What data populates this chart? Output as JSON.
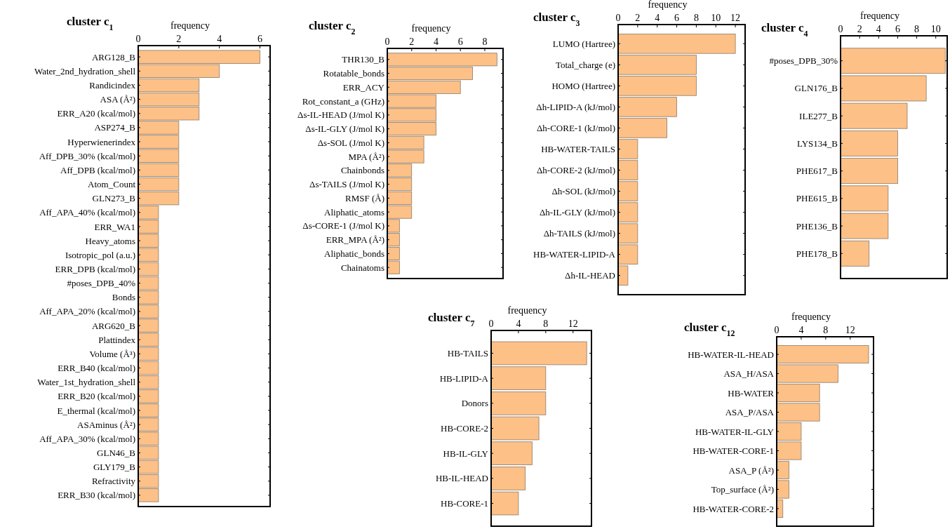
{
  "chart_data": [
    {
      "type": "bar",
      "orientation": "horizontal",
      "title": "cluster c$_{1}$",
      "xlabel": "frequency",
      "color": "#fdc086",
      "xlim": [
        0,
        6.5
      ],
      "xticks": [
        0,
        2,
        4,
        6
      ],
      "categories": [
        "ARG128_B",
        "Water_2nd_hydration_shell",
        "Randicindex",
        "ASA (Å²)",
        "ERR_A20 (kcal/mol)",
        "ASP274_B",
        "Hyperwienerindex",
        "Aff_DPB_30% (kcal/mol)",
        "Aff_DPB (kcal/mol)",
        "Atom_Count",
        "GLN273_B",
        "Aff_APA_40% (kcal/mol)",
        "ERR_WA1",
        "Heavy_atoms",
        "Isotropic_pol (a.u.)",
        "ERR_DPB (kcal/mol)",
        "#poses_DPB_40%",
        "Bonds",
        "Aff_APA_20% (kcal/mol)",
        "ARG620_B",
        "Plattindex",
        "Volume (Å³)",
        "ERR_B40 (kcal/mol)",
        "Water_1st_hydration_shell",
        "ERR_B20 (kcal/mol)",
        "E_thermal (kcal/mol)",
        "ASAminus (Å²)",
        "Aff_APA_30% (kcal/mol)",
        "GLN46_B",
        "GLY179_B",
        "Refractivity",
        "ERR_B30 (kcal/mol)"
      ],
      "values": [
        6,
        4,
        3,
        3,
        3,
        2,
        2,
        2,
        2,
        2,
        2,
        1,
        1,
        1,
        1,
        1,
        1,
        1,
        1,
        1,
        1,
        1,
        1,
        1,
        1,
        1,
        1,
        1,
        1,
        1,
        1,
        1
      ]
    },
    {
      "type": "bar",
      "orientation": "horizontal",
      "title": "cluster c$_{2}$",
      "xlabel": "frequency",
      "color": "#fdc086",
      "xlim": [
        0,
        9.5
      ],
      "xticks": [
        0,
        2,
        4,
        6,
        8
      ],
      "categories": [
        "THR130_B",
        "Rotatable_bonds",
        "ERR_ACY",
        "Rot_constant_a (GHz)",
        "Δs-IL-HEAD (J/mol K)",
        "Δs-IL-GLY (J/mol K)",
        "Δs-SOL (J/mol K)",
        "MPA (Å²)",
        "Chainbonds",
        "Δs-TAILS (J/mol K)",
        "RMSF (Å)",
        "Aliphatic_atoms",
        "Δs-CORE-1 (J/mol K)",
        "ERR_MPA (Å²)",
        "Aliphatic_bonds",
        "Chainatoms"
      ],
      "values": [
        9,
        7,
        6,
        4,
        4,
        4,
        3,
        3,
        2,
        2,
        2,
        2,
        1,
        1,
        1,
        1
      ]
    },
    {
      "type": "bar",
      "orientation": "horizontal",
      "title": "cluster c$_{3}$",
      "xlabel": "frequency",
      "color": "#fdc086",
      "xlim": [
        0,
        13
      ],
      "xticks": [
        0,
        2,
        4,
        6,
        8,
        10,
        12
      ],
      "categories": [
        "LUMO (Hartree)",
        "Total_charge (e)",
        "HOMO (Hartree)",
        "Δh-LIPID-A (kJ/mol)",
        "Δh-CORE-1 (kJ/mol)",
        "HB-WATER-TAILS",
        "Δh-CORE-2 (kJ/mol)",
        "Δh-SOL (kJ/mol)",
        "Δh-IL-GLY (kJ/mol)",
        "Δh-TAILS (kJ/mol)",
        "HB-WATER-LIPID-A",
        "Δh-IL-HEAD"
      ],
      "values": [
        12,
        8,
        8,
        6,
        5,
        2,
        2,
        2,
        2,
        2,
        2,
        1
      ]
    },
    {
      "type": "bar",
      "orientation": "horizontal",
      "title": "cluster c$_{4}$",
      "xlabel": "frequency",
      "color": "#fdc086",
      "xlim": [
        0,
        11.2
      ],
      "xticks": [
        0,
        2,
        4,
        6,
        8,
        10
      ],
      "categories": [
        "#poses_DPB_30%",
        "GLN176_B",
        "ILE277_B",
        "LYS134_B",
        "PHE617_B",
        "PHE615_B",
        "PHE136_B",
        "PHE178_B"
      ],
      "values": [
        11,
        9,
        7,
        6,
        6,
        5,
        5,
        3
      ]
    },
    {
      "type": "bar",
      "orientation": "horizontal",
      "title": "cluster c$_{7}$",
      "xlabel": "frequency",
      "color": "#fdc086",
      "xlim": [
        0,
        14.7
      ],
      "xticks": [
        0,
        4,
        8,
        12
      ],
      "categories": [
        "HB-TAILS",
        "HB-LIPID-A",
        "Donors",
        "HB-CORE-2",
        "HB-IL-GLY",
        "HB-IL-HEAD",
        "HB-CORE-1"
      ],
      "values": [
        14,
        8,
        8,
        7,
        6,
        5,
        4
      ]
    },
    {
      "type": "bar",
      "orientation": "horizontal",
      "title": "cluster c$_{12}$",
      "xlabel": "frequency",
      "color": "#fdc086",
      "xlim": [
        0,
        15.8
      ],
      "xticks": [
        0,
        4,
        8,
        12
      ],
      "categories": [
        "HB-WATER-IL-HEAD",
        "ASA_H/ASA",
        "HB-WATER",
        "ASA_P/ASA",
        "HB-WATER-IL-GLY",
        "HB-WATER-CORE-1",
        "ASA_P (Å²)",
        "Top_surface (Å²)",
        "HB-WATER-CORE-2"
      ],
      "values": [
        15,
        10,
        7,
        7,
        4,
        4,
        2,
        2,
        1
      ]
    }
  ]
}
